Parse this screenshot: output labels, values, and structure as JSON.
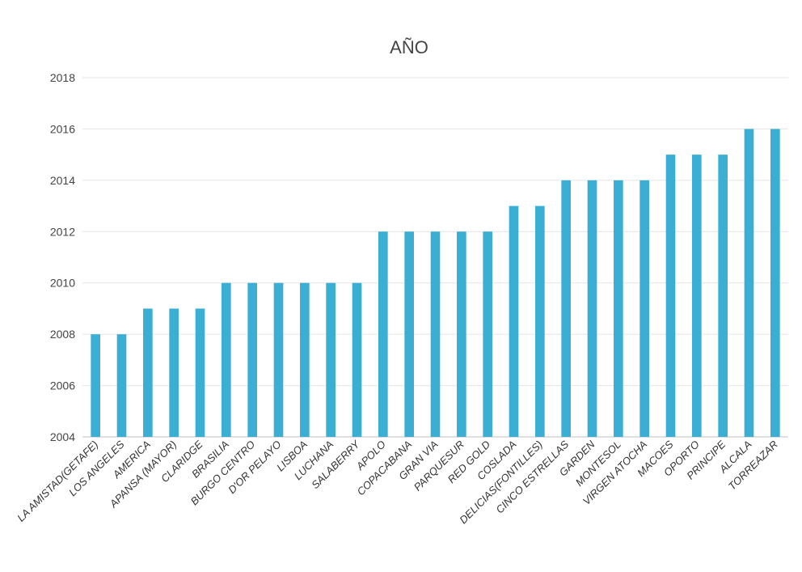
{
  "chart_data": {
    "type": "bar",
    "title": "AÑO",
    "xlabel": "",
    "ylabel": "",
    "ylim": [
      2004,
      2018
    ],
    "yticks": [
      "2004",
      "2006",
      "2008",
      "2010",
      "2012",
      "2014",
      "2016",
      "2018"
    ],
    "grid": true,
    "legend": "none",
    "bar_color": "#3aaed3",
    "categories": [
      "LA AMISTAD(GETAFE)",
      "LOS ANGELES",
      "AMERICA",
      "APANSA (MAYOR)",
      "CLARIDGE",
      "BRASILIA",
      "BURGO CENTRO",
      "D'OR PELAYO",
      "LISBOA",
      "LUCHANA",
      "SALABERRY",
      "APOLO",
      "COPACABANA",
      "GRAN VIA",
      "PARQUESUR",
      "RED GOLD",
      "COSLADA",
      "DELICIAS(FONTILLES)",
      "CINCO ESTRELLAS",
      "GARDEN",
      "MONTESOL",
      "VIRGEN ATOCHA",
      "MACOES",
      "OPORTO",
      "PRINCIPE",
      "ALCALA",
      "TORREAZAR"
    ],
    "values": [
      2008,
      2008,
      2009,
      2009,
      2009,
      2010,
      2010,
      2010,
      2010,
      2010,
      2010,
      2012,
      2012,
      2012,
      2012,
      2012,
      2013,
      2013,
      2014,
      2014,
      2014,
      2014,
      2015,
      2015,
      2015,
      2016,
      2016
    ]
  }
}
